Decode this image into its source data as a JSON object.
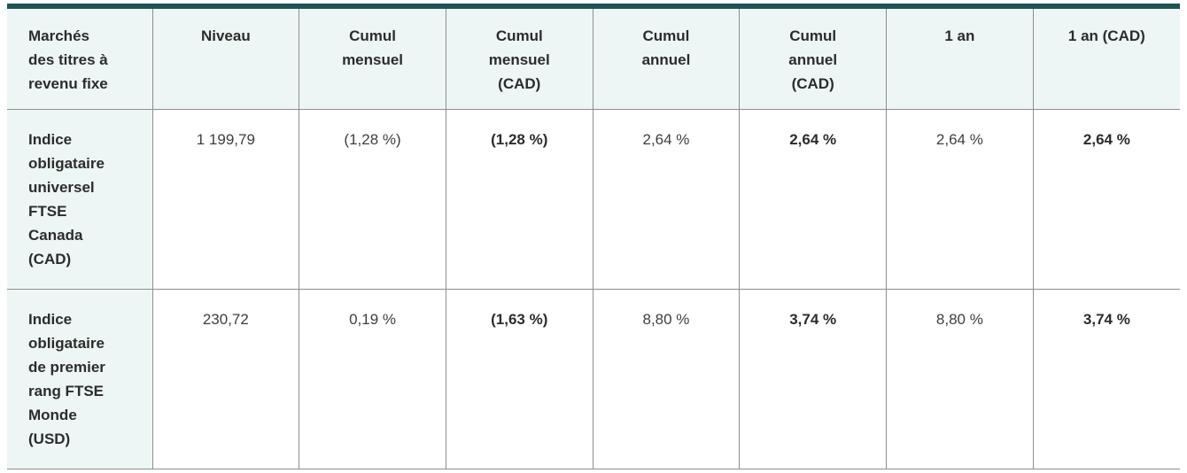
{
  "colors": {
    "accent_teal": "#1d5553",
    "header_background_mint": "#edf6f4",
    "grid_line_gray": "#8e8e8e"
  },
  "table": {
    "columns": [
      "Marchés\ndes titres à\nrevenu fixe",
      "Niveau",
      "Cumul\nmensuel",
      "Cumul\nmensuel\n(CAD)",
      "Cumul\nannuel",
      "Cumul\nannuel\n(CAD)",
      "1 an",
      "1 an (CAD)"
    ],
    "rows": [
      {
        "name": "Indice\nobligataire\nuniversel\nFTSE\nCanada\n(CAD)",
        "values": [
          "1 199,79",
          "(1,28 %)",
          "(1,28 %)",
          "2,64 %",
          "2,64 %",
          "2,64 %",
          "2,64 %"
        ]
      },
      {
        "name": "Indice\nobligataire\nde premier\nrang FTSE\nMonde\n(USD)",
        "values": [
          "230,72",
          "0,19 %",
          "(1,63 %)",
          "8,80 %",
          "3,74 %",
          "8,80 %",
          "3,74 %"
        ]
      }
    ]
  }
}
